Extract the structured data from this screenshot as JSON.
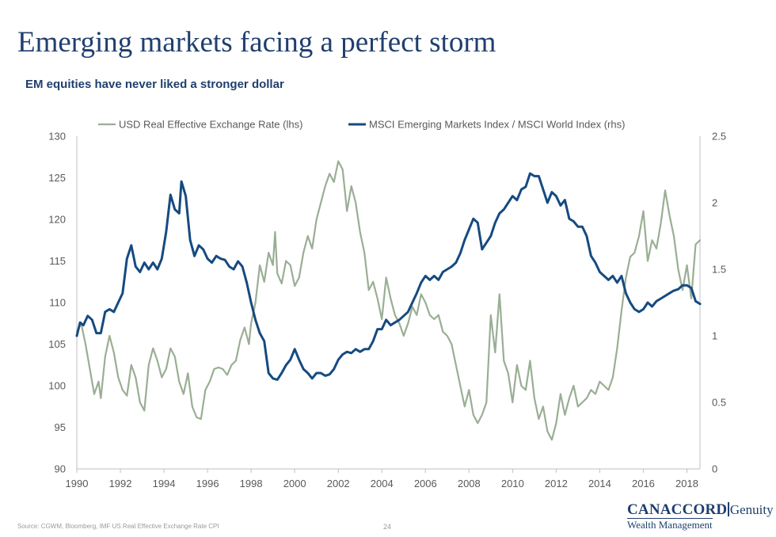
{
  "header": {
    "title": "Emerging markets facing a perfect storm",
    "subtitle": "EM equities have never liked a stronger dollar"
  },
  "footer": {
    "source": "Source: CGWM, Bloomberg, IMF US Real Effective Exchange Rate CPI",
    "page_number": "24",
    "logo_main": "CANACCORD",
    "logo_second": "Genuity",
    "logo_sub": "Wealth Management"
  },
  "colors": {
    "usd": "#9aae94",
    "msci": "#164a80",
    "axis": "#bfbfbf",
    "text": "#595959"
  },
  "chart_data": {
    "type": "line",
    "title": "",
    "legend_position": "top",
    "grid": false,
    "x_range": [
      1990,
      2018.6
    ],
    "x_ticks": [
      "1990",
      "1992",
      "1994",
      "1996",
      "1998",
      "2000",
      "2002",
      "2004",
      "2006",
      "2008",
      "2010",
      "2012",
      "2014",
      "2016",
      "2018"
    ],
    "y_left": {
      "range": [
        90,
        130
      ],
      "ticks": [
        "90",
        "95",
        "100",
        "105",
        "110",
        "115",
        "120",
        "125",
        "130"
      ]
    },
    "y_right": {
      "range": [
        0,
        2.5
      ],
      "ticks": [
        "0",
        "0.5",
        "1",
        "1.5",
        "2",
        "2.5"
      ]
    },
    "series": [
      {
        "name": "USD Real Effective Exchange Rate (lhs)",
        "axis": "left",
        "points": [
          [
            1990.0,
            106.5
          ],
          [
            1990.2,
            107.5
          ],
          [
            1990.4,
            105.0
          ],
          [
            1990.6,
            102.0
          ],
          [
            1990.8,
            99.0
          ],
          [
            1991.0,
            100.5
          ],
          [
            1991.1,
            98.5
          ],
          [
            1991.3,
            103.5
          ],
          [
            1991.5,
            106.0
          ],
          [
            1991.7,
            104.0
          ],
          [
            1991.9,
            101.0
          ],
          [
            1992.1,
            99.5
          ],
          [
            1992.3,
            98.8
          ],
          [
            1992.5,
            102.5
          ],
          [
            1992.7,
            101.0
          ],
          [
            1992.9,
            98.0
          ],
          [
            1993.1,
            97.0
          ],
          [
            1993.3,
            102.5
          ],
          [
            1993.5,
            104.5
          ],
          [
            1993.7,
            103.0
          ],
          [
            1993.9,
            101.0
          ],
          [
            1994.1,
            102.0
          ],
          [
            1994.3,
            104.5
          ],
          [
            1994.5,
            103.5
          ],
          [
            1994.7,
            100.5
          ],
          [
            1994.9,
            99.0
          ],
          [
            1995.1,
            101.5
          ],
          [
            1995.3,
            97.5
          ],
          [
            1995.5,
            96.2
          ],
          [
            1995.7,
            96.0
          ],
          [
            1995.9,
            99.5
          ],
          [
            1996.1,
            100.5
          ],
          [
            1996.3,
            102.0
          ],
          [
            1996.5,
            102.2
          ],
          [
            1996.7,
            102.0
          ],
          [
            1996.9,
            101.3
          ],
          [
            1997.1,
            102.5
          ],
          [
            1997.3,
            103.0
          ],
          [
            1997.5,
            105.5
          ],
          [
            1997.7,
            107.0
          ],
          [
            1997.9,
            105.0
          ],
          [
            1998.0,
            107.5
          ],
          [
            1998.2,
            110.0
          ],
          [
            1998.4,
            114.5
          ],
          [
            1998.6,
            112.5
          ],
          [
            1998.8,
            116.0
          ],
          [
            1999.0,
            114.5
          ],
          [
            1999.1,
            118.5
          ],
          [
            1999.2,
            113.5
          ],
          [
            1999.4,
            112.3
          ],
          [
            1999.6,
            115.0
          ],
          [
            1999.8,
            114.5
          ],
          [
            2000.0,
            112.0
          ],
          [
            2000.2,
            113.0
          ],
          [
            2000.4,
            116.0
          ],
          [
            2000.6,
            118.0
          ],
          [
            2000.8,
            116.5
          ],
          [
            2001.0,
            120.0
          ],
          [
            2001.2,
            122.0
          ],
          [
            2001.4,
            124.0
          ],
          [
            2001.6,
            125.5
          ],
          [
            2001.8,
            124.5
          ],
          [
            2002.0,
            127.0
          ],
          [
            2002.2,
            126.0
          ],
          [
            2002.4,
            121.0
          ],
          [
            2002.6,
            124.0
          ],
          [
            2002.8,
            122.0
          ],
          [
            2003.0,
            118.5
          ],
          [
            2003.2,
            116.0
          ],
          [
            2003.4,
            111.5
          ],
          [
            2003.6,
            112.5
          ],
          [
            2003.8,
            110.5
          ],
          [
            2004.0,
            108.0
          ],
          [
            2004.2,
            113.0
          ],
          [
            2004.4,
            110.5
          ],
          [
            2004.6,
            108.5
          ],
          [
            2004.8,
            107.5
          ],
          [
            2005.0,
            106.0
          ],
          [
            2005.2,
            107.5
          ],
          [
            2005.4,
            109.5
          ],
          [
            2005.6,
            108.5
          ],
          [
            2005.8,
            111.0
          ],
          [
            2006.0,
            110.0
          ],
          [
            2006.2,
            108.5
          ],
          [
            2006.4,
            108.0
          ],
          [
            2006.6,
            108.5
          ],
          [
            2006.8,
            106.5
          ],
          [
            2007.0,
            106.0
          ],
          [
            2007.2,
            105.0
          ],
          [
            2007.4,
            102.5
          ],
          [
            2007.6,
            100.0
          ],
          [
            2007.8,
            97.5
          ],
          [
            2008.0,
            99.5
          ],
          [
            2008.2,
            96.5
          ],
          [
            2008.4,
            95.5
          ],
          [
            2008.6,
            96.5
          ],
          [
            2008.8,
            98.0
          ],
          [
            2009.0,
            108.5
          ],
          [
            2009.2,
            104.0
          ],
          [
            2009.4,
            111.0
          ],
          [
            2009.6,
            103.0
          ],
          [
            2009.8,
            101.5
          ],
          [
            2010.0,
            98.0
          ],
          [
            2010.2,
            102.5
          ],
          [
            2010.4,
            100.0
          ],
          [
            2010.6,
            99.5
          ],
          [
            2010.8,
            103.0
          ],
          [
            2011.0,
            98.5
          ],
          [
            2011.2,
            96.0
          ],
          [
            2011.4,
            97.5
          ],
          [
            2011.6,
            94.5
          ],
          [
            2011.8,
            93.5
          ],
          [
            2012.0,
            95.5
          ],
          [
            2012.2,
            99.0
          ],
          [
            2012.4,
            96.5
          ],
          [
            2012.6,
            98.5
          ],
          [
            2012.8,
            100.0
          ],
          [
            2013.0,
            97.5
          ],
          [
            2013.2,
            98.0
          ],
          [
            2013.4,
            98.5
          ],
          [
            2013.6,
            99.5
          ],
          [
            2013.8,
            99.0
          ],
          [
            2014.0,
            100.5
          ],
          [
            2014.2,
            100.0
          ],
          [
            2014.4,
            99.5
          ],
          [
            2014.6,
            101.0
          ],
          [
            2014.8,
            104.5
          ],
          [
            2015.0,
            109.0
          ],
          [
            2015.2,
            113.0
          ],
          [
            2015.4,
            115.5
          ],
          [
            2015.6,
            116.0
          ],
          [
            2015.8,
            118.0
          ],
          [
            2016.0,
            121.0
          ],
          [
            2016.2,
            115.0
          ],
          [
            2016.4,
            117.5
          ],
          [
            2016.6,
            116.5
          ],
          [
            2016.8,
            119.5
          ],
          [
            2017.0,
            123.5
          ],
          [
            2017.2,
            120.5
          ],
          [
            2017.4,
            118.0
          ],
          [
            2017.6,
            114.0
          ],
          [
            2017.8,
            111.5
          ],
          [
            2018.0,
            114.5
          ],
          [
            2018.2,
            110.5
          ],
          [
            2018.4,
            117.0
          ],
          [
            2018.6,
            117.5
          ]
        ]
      },
      {
        "name": "MSCI Emerging Markets Index / MSCI World Index (rhs)",
        "axis": "right",
        "points": [
          [
            1990.0,
            1.0
          ],
          [
            1990.15,
            1.1
          ],
          [
            1990.3,
            1.08
          ],
          [
            1990.5,
            1.15
          ],
          [
            1990.7,
            1.12
          ],
          [
            1990.9,
            1.02
          ],
          [
            1991.1,
            1.02
          ],
          [
            1991.3,
            1.18
          ],
          [
            1991.5,
            1.2
          ],
          [
            1991.7,
            1.18
          ],
          [
            1991.9,
            1.25
          ],
          [
            1992.1,
            1.32
          ],
          [
            1992.3,
            1.58
          ],
          [
            1992.5,
            1.68
          ],
          [
            1992.7,
            1.52
          ],
          [
            1992.9,
            1.48
          ],
          [
            1993.1,
            1.55
          ],
          [
            1993.3,
            1.5
          ],
          [
            1993.5,
            1.55
          ],
          [
            1993.7,
            1.5
          ],
          [
            1993.9,
            1.58
          ],
          [
            1994.1,
            1.78
          ],
          [
            1994.3,
            2.06
          ],
          [
            1994.5,
            1.95
          ],
          [
            1994.7,
            1.92
          ],
          [
            1994.8,
            2.16
          ],
          [
            1995.0,
            2.05
          ],
          [
            1995.2,
            1.72
          ],
          [
            1995.4,
            1.6
          ],
          [
            1995.6,
            1.68
          ],
          [
            1995.8,
            1.65
          ],
          [
            1996.0,
            1.58
          ],
          [
            1996.2,
            1.55
          ],
          [
            1996.4,
            1.6
          ],
          [
            1996.6,
            1.58
          ],
          [
            1996.8,
            1.57
          ],
          [
            1997.0,
            1.52
          ],
          [
            1997.2,
            1.5
          ],
          [
            1997.4,
            1.56
          ],
          [
            1997.6,
            1.52
          ],
          [
            1997.8,
            1.4
          ],
          [
            1998.0,
            1.25
          ],
          [
            1998.2,
            1.12
          ],
          [
            1998.4,
            1.02
          ],
          [
            1998.6,
            0.96
          ],
          [
            1998.8,
            0.72
          ],
          [
            1999.0,
            0.68
          ],
          [
            1999.2,
            0.67
          ],
          [
            1999.4,
            0.72
          ],
          [
            1999.6,
            0.78
          ],
          [
            1999.8,
            0.82
          ],
          [
            2000.0,
            0.9
          ],
          [
            2000.2,
            0.82
          ],
          [
            2000.4,
            0.75
          ],
          [
            2000.6,
            0.72
          ],
          [
            2000.8,
            0.68
          ],
          [
            2001.0,
            0.72
          ],
          [
            2001.2,
            0.72
          ],
          [
            2001.4,
            0.7
          ],
          [
            2001.6,
            0.71
          ],
          [
            2001.8,
            0.75
          ],
          [
            2002.0,
            0.82
          ],
          [
            2002.2,
            0.86
          ],
          [
            2002.4,
            0.88
          ],
          [
            2002.6,
            0.87
          ],
          [
            2002.8,
            0.9
          ],
          [
            2003.0,
            0.88
          ],
          [
            2003.2,
            0.9
          ],
          [
            2003.4,
            0.9
          ],
          [
            2003.6,
            0.96
          ],
          [
            2003.8,
            1.05
          ],
          [
            2004.0,
            1.05
          ],
          [
            2004.2,
            1.12
          ],
          [
            2004.4,
            1.08
          ],
          [
            2004.6,
            1.1
          ],
          [
            2004.8,
            1.12
          ],
          [
            2005.0,
            1.15
          ],
          [
            2005.2,
            1.18
          ],
          [
            2005.4,
            1.25
          ],
          [
            2005.6,
            1.32
          ],
          [
            2005.8,
            1.4
          ],
          [
            2006.0,
            1.45
          ],
          [
            2006.2,
            1.42
          ],
          [
            2006.4,
            1.45
          ],
          [
            2006.6,
            1.42
          ],
          [
            2006.8,
            1.48
          ],
          [
            2007.0,
            1.5
          ],
          [
            2007.2,
            1.52
          ],
          [
            2007.4,
            1.55
          ],
          [
            2007.6,
            1.62
          ],
          [
            2007.8,
            1.72
          ],
          [
            2008.0,
            1.8
          ],
          [
            2008.2,
            1.88
          ],
          [
            2008.4,
            1.85
          ],
          [
            2008.6,
            1.65
          ],
          [
            2008.8,
            1.7
          ],
          [
            2009.0,
            1.75
          ],
          [
            2009.2,
            1.85
          ],
          [
            2009.4,
            1.92
          ],
          [
            2009.6,
            1.95
          ],
          [
            2009.8,
            2.0
          ],
          [
            2010.0,
            2.05
          ],
          [
            2010.2,
            2.02
          ],
          [
            2010.4,
            2.1
          ],
          [
            2010.6,
            2.12
          ],
          [
            2010.8,
            2.22
          ],
          [
            2011.0,
            2.2
          ],
          [
            2011.2,
            2.2
          ],
          [
            2011.4,
            2.1
          ],
          [
            2011.6,
            2.0
          ],
          [
            2011.8,
            2.08
          ],
          [
            2012.0,
            2.05
          ],
          [
            2012.2,
            1.98
          ],
          [
            2012.4,
            2.02
          ],
          [
            2012.6,
            1.88
          ],
          [
            2012.8,
            1.86
          ],
          [
            2013.0,
            1.82
          ],
          [
            2013.2,
            1.82
          ],
          [
            2013.4,
            1.75
          ],
          [
            2013.6,
            1.6
          ],
          [
            2013.8,
            1.55
          ],
          [
            2014.0,
            1.48
          ],
          [
            2014.2,
            1.45
          ],
          [
            2014.4,
            1.42
          ],
          [
            2014.6,
            1.45
          ],
          [
            2014.8,
            1.4
          ],
          [
            2015.0,
            1.45
          ],
          [
            2015.2,
            1.32
          ],
          [
            2015.4,
            1.25
          ],
          [
            2015.6,
            1.2
          ],
          [
            2015.8,
            1.18
          ],
          [
            2016.0,
            1.2
          ],
          [
            2016.2,
            1.25
          ],
          [
            2016.4,
            1.22
          ],
          [
            2016.6,
            1.26
          ],
          [
            2016.8,
            1.28
          ],
          [
            2017.0,
            1.3
          ],
          [
            2017.2,
            1.32
          ],
          [
            2017.4,
            1.34
          ],
          [
            2017.6,
            1.35
          ],
          [
            2017.8,
            1.38
          ],
          [
            2018.0,
            1.38
          ],
          [
            2018.2,
            1.36
          ],
          [
            2018.4,
            1.26
          ],
          [
            2018.6,
            1.24
          ]
        ]
      }
    ]
  }
}
